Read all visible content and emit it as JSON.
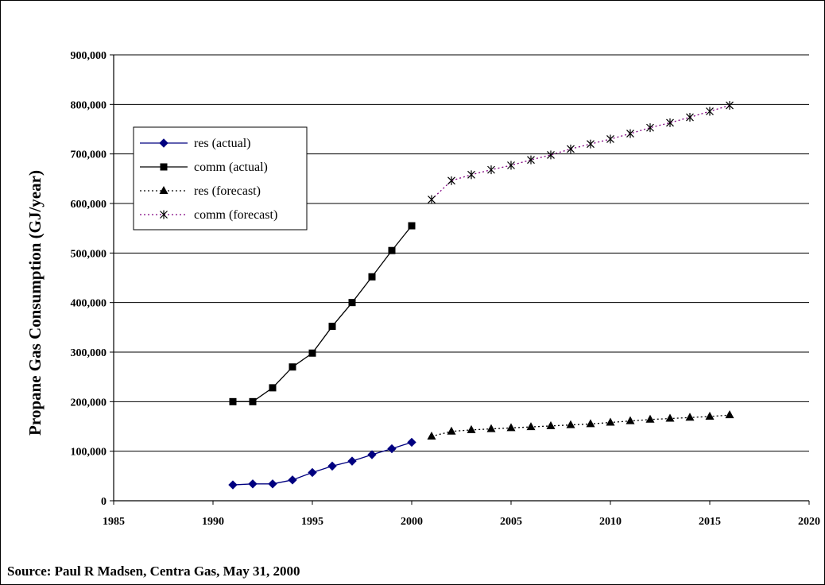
{
  "chart_data": {
    "type": "line",
    "xlabel": "",
    "ylabel": "Propane Gas Consumption (GJ/year)",
    "xlim": [
      1985,
      2020
    ],
    "ylim": [
      0,
      900000
    ],
    "x_ticks": [
      1985,
      1990,
      1995,
      2000,
      2005,
      2010,
      2015,
      2020
    ],
    "x_tick_labels": [
      "1985",
      "1990",
      "1995",
      "2000",
      "2005",
      "2010",
      "2015",
      "2020"
    ],
    "y_ticks": [
      0,
      100000,
      200000,
      300000,
      400000,
      500000,
      600000,
      700000,
      800000,
      900000
    ],
    "y_tick_labels": [
      "0",
      "100,000",
      "200,000",
      "300,000",
      "400,000",
      "500,000",
      "600,000",
      "700,000",
      "800,000",
      "900,000"
    ],
    "grid": "horizontal",
    "legend_position": "upper-left",
    "series": [
      {
        "name": "res (actual)",
        "marker": "diamond",
        "line": "solid",
        "color": "#000080",
        "x": [
          1991,
          1992,
          1993,
          1994,
          1995,
          1996,
          1997,
          1998,
          1999,
          2000
        ],
        "values": [
          32000,
          34000,
          34000,
          42000,
          57000,
          70000,
          80000,
          93000,
          105000,
          118000
        ]
      },
      {
        "name": "comm (actual)",
        "marker": "square",
        "line": "solid",
        "color": "#000000",
        "x": [
          1991,
          1992,
          1993,
          1994,
          1995,
          1996,
          1997,
          1998,
          1999,
          2000
        ],
        "values": [
          200000,
          200000,
          228000,
          270000,
          298000,
          352000,
          400000,
          452000,
          505000,
          555000
        ]
      },
      {
        "name": "res (forecast)",
        "marker": "triangle",
        "line": "dotted",
        "color": "#000000",
        "x": [
          2001,
          2002,
          2003,
          2004,
          2005,
          2006,
          2007,
          2008,
          2009,
          2010,
          2011,
          2012,
          2013,
          2014,
          2015,
          2016
        ],
        "values": [
          130000,
          140000,
          143000,
          145000,
          147000,
          149000,
          151000,
          153000,
          155000,
          158000,
          161000,
          164000,
          166000,
          168000,
          170000,
          173000
        ]
      },
      {
        "name": "comm (forecast)",
        "marker": "asterisk",
        "line": "dotted",
        "color": "#800080",
        "x": [
          2001,
          2002,
          2003,
          2004,
          2005,
          2006,
          2007,
          2008,
          2009,
          2010,
          2011,
          2012,
          2013,
          2014,
          2015,
          2016
        ],
        "values": [
          608000,
          646000,
          658000,
          668000,
          677000,
          688000,
          698000,
          710000,
          720000,
          730000,
          741000,
          753000,
          763000,
          774000,
          786000,
          798000
        ]
      }
    ]
  },
  "source_text": "Source: Paul R Madsen, Centra Gas, May 31, 2000"
}
